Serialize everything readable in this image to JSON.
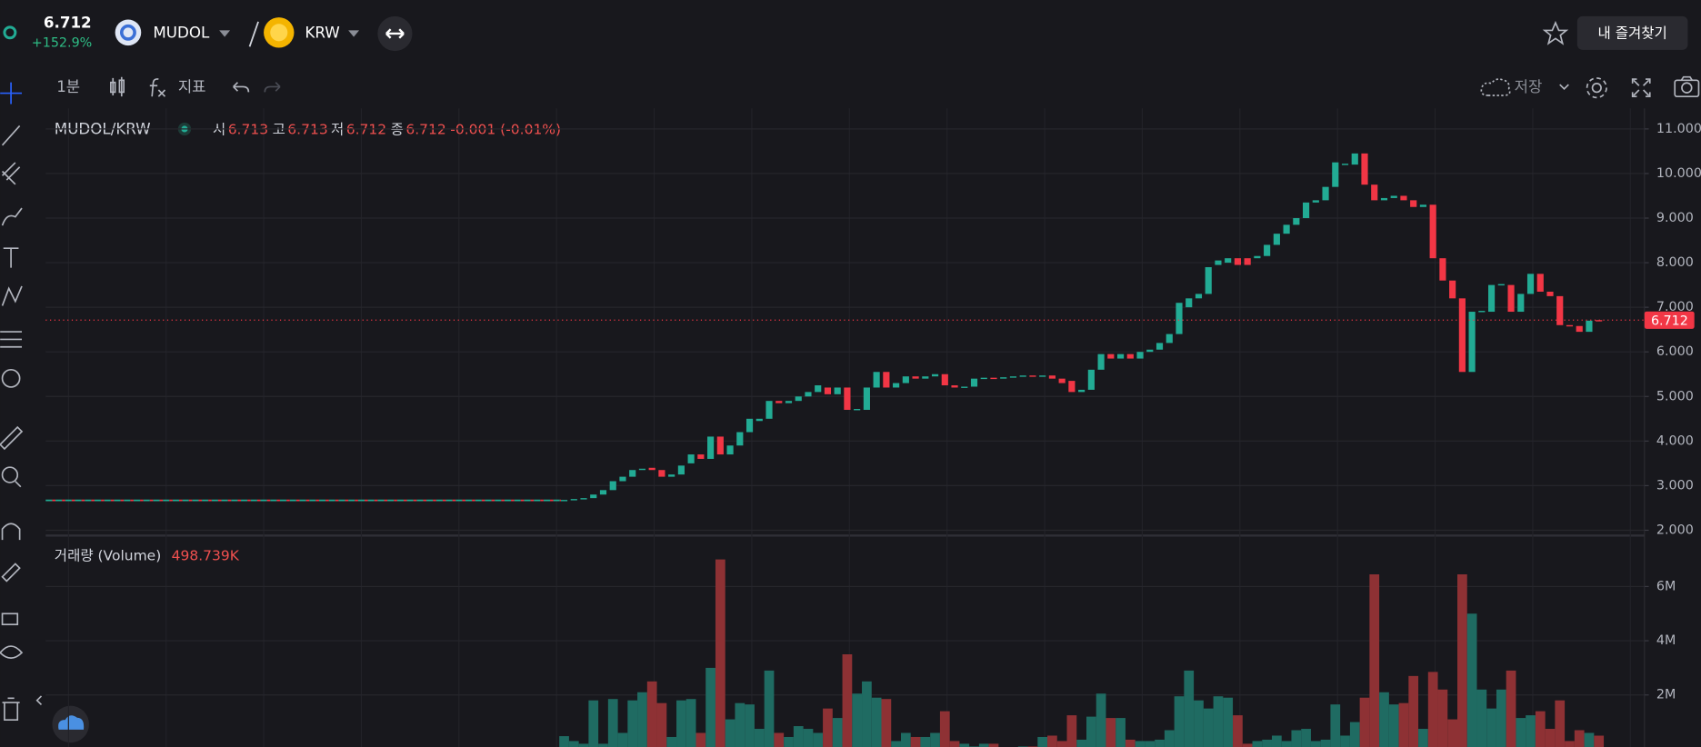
{
  "header": {
    "price": "6.712",
    "change": "+152.9%",
    "base": "MUDOL",
    "quote": "KRW",
    "favorites": "내 즐겨찾기"
  },
  "toolbar": {
    "interval": "1분",
    "indicators": "지표",
    "save": "저장"
  },
  "legend": {
    "symbol": "MUDOL/KRW",
    "open_label": "시",
    "open": "6.713",
    "high_label": "고",
    "high": "6.713",
    "low_label": "저",
    "low": "6.712",
    "close_label": "종",
    "close": "6.712",
    "change": "-0.001 (-0.01%)"
  },
  "chart_data": [
    {
      "type": "candlestick",
      "open": [
        2.67,
        2.68,
        2.7,
        2.72,
        2.8,
        2.9,
        3.1,
        3.2,
        3.35,
        3.4,
        3.35,
        3.2,
        3.25,
        3.5,
        3.7,
        3.6,
        4.1,
        3.7,
        3.9,
        4.2,
        4.45,
        4.5,
        4.9,
        4.85,
        4.9,
        5.0,
        5.1,
        5.2,
        5.05,
        5.2,
        4.7,
        4.7,
        5.2,
        5.55,
        5.2,
        5.3,
        5.45,
        5.4,
        5.45,
        5.5,
        5.25,
        5.2,
        5.22,
        5.4,
        5.42,
        5.4,
        5.43,
        5.45,
        5.47,
        5.45,
        5.47,
        5.4,
        5.35,
        5.1,
        5.15,
        5.6,
        5.95,
        5.85,
        5.95,
        5.85,
        6.0,
        6.05,
        6.2,
        6.4,
        7.0,
        7.2,
        7.3,
        7.95,
        8.0,
        8.1,
        8.1,
        8.1,
        8.15,
        8.4,
        8.65,
        8.85,
        9.0,
        9.35,
        9.4,
        9.7,
        10.2,
        10.2,
        10.45,
        9.75,
        9.4,
        9.45,
        9.5,
        9.4,
        9.25,
        9.3,
        8.1,
        7.6,
        7.2,
        5.55,
        6.9,
        6.9,
        7.5,
        7.5,
        6.9,
        7.3,
        7.75,
        7.35,
        7.25,
        6.6,
        6.58,
        6.45,
        6.713
      ],
      "close": [
        2.68,
        2.7,
        2.72,
        2.8,
        2.9,
        3.1,
        3.2,
        3.35,
        3.38,
        3.35,
        3.2,
        3.25,
        3.45,
        3.7,
        3.6,
        4.1,
        3.7,
        3.9,
        4.2,
        4.5,
        4.5,
        4.9,
        4.85,
        4.9,
        5.0,
        5.1,
        5.25,
        5.05,
        5.2,
        4.7,
        4.72,
        5.2,
        5.55,
        5.2,
        5.3,
        5.45,
        5.4,
        5.45,
        5.5,
        5.25,
        5.2,
        5.22,
        5.4,
        5.42,
        5.4,
        5.43,
        5.45,
        5.47,
        5.45,
        5.47,
        5.4,
        5.3,
        5.1,
        5.15,
        5.6,
        5.95,
        5.85,
        5.95,
        5.85,
        6.0,
        6.05,
        6.2,
        6.4,
        7.1,
        7.2,
        7.3,
        7.9,
        8.05,
        8.1,
        7.95,
        7.95,
        8.15,
        8.4,
        8.65,
        8.85,
        9.0,
        9.35,
        9.4,
        9.7,
        10.25,
        10.22,
        10.45,
        9.75,
        9.4,
        9.45,
        9.5,
        9.4,
        9.25,
        9.3,
        8.1,
        7.6,
        7.2,
        5.55,
        6.9,
        6.92,
        7.5,
        7.52,
        6.9,
        7.3,
        7.75,
        7.35,
        7.25,
        6.6,
        6.58,
        6.45,
        6.7,
        6.712
      ],
      "up_color": "#22ab94",
      "down_color": "#f23645",
      "prior_level": 2.67,
      "last_price": 6.712,
      "ylim": [
        1.88,
        11.46
      ],
      "yticks": [
        {
          "value": 2,
          "label": "2.000"
        },
        {
          "value": 3,
          "label": "3.000"
        },
        {
          "value": 4,
          "label": "4.000"
        },
        {
          "value": 5,
          "label": "5.000"
        },
        {
          "value": 6,
          "label": "6.000"
        },
        {
          "value": 7,
          "label": "7.000"
        },
        {
          "value": 8,
          "label": "8.000"
        },
        {
          "value": 9,
          "label": "9.000"
        },
        {
          "value": 10,
          "label": "10.000"
        },
        {
          "value": 11,
          "label": "11.000"
        }
      ],
      "grid": true
    },
    {
      "type": "bar",
      "title": "거래량 (Volume)",
      "legend_value": "498.739K",
      "values": [
        0.48,
        0.3,
        0.2,
        1.8,
        0.2,
        1.85,
        0.6,
        1.8,
        2.1,
        2.5,
        1.7,
        0.45,
        1.8,
        1.85,
        0.6,
        3.0,
        7.0,
        1.1,
        1.7,
        1.65,
        0.75,
        2.9,
        0.6,
        0.45,
        0.85,
        0.75,
        0.6,
        1.5,
        1.15,
        3.5,
        2.05,
        2.5,
        1.9,
        1.85,
        0.3,
        0.6,
        0.45,
        0.45,
        0.6,
        1.4,
        0.3,
        0.2,
        0.1,
        0.2,
        0.2,
        0.05,
        0.05,
        0.1,
        0.1,
        0.45,
        0.5,
        0.3,
        1.25,
        0.35,
        1.2,
        2.05,
        1.15,
        1.15,
        0.35,
        0.3,
        0.3,
        0.35,
        0.7,
        1.95,
        2.9,
        1.8,
        1.5,
        1.95,
        1.9,
        1.25,
        0.2,
        0.3,
        0.35,
        0.5,
        0.3,
        0.7,
        0.75,
        0.3,
        0.35,
        1.65,
        0.5,
        1.0,
        1.9,
        6.45,
        2.1,
        1.65,
        1.7,
        2.7,
        0.75,
        2.85,
        2.2,
        1.1,
        6.45,
        5.0,
        2.2,
        1.5,
        2.2,
        2.9,
        1.15,
        1.25,
        1.4,
        0.75,
        1.8,
        0.3,
        0.7,
        0.6,
        0.499
      ],
      "up_color": "#1f6b62",
      "down_color": "#8e3134",
      "ylim": [
        0,
        7.88
      ],
      "yticks": [
        {
          "value": 2,
          "label": "2M"
        },
        {
          "value": 4,
          "label": "4M"
        },
        {
          "value": 6,
          "label": "6M"
        }
      ],
      "grid": true
    }
  ]
}
